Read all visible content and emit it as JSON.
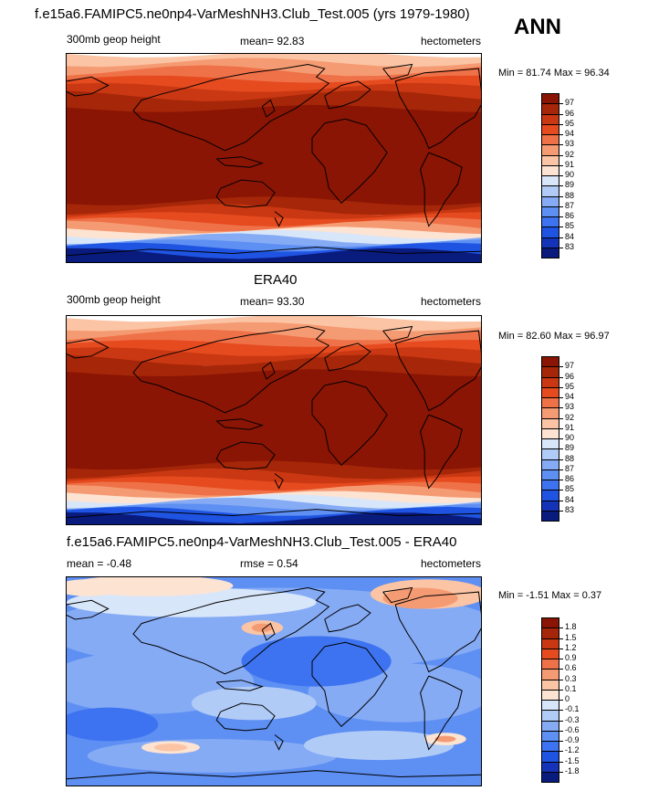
{
  "header": {
    "ann_label": "ANN"
  },
  "colors": {
    "abs_scale": [
      "#0a1b7e",
      "#1433b8",
      "#1f54e2",
      "#3d73f0",
      "#5e8ff2",
      "#86abf5",
      "#b1cbf7",
      "#d8e6fa",
      "#fde3d2",
      "#fbc4a4",
      "#f59b73",
      "#ef7148",
      "#e64a1f",
      "#c93812",
      "#a52608",
      "#8a1504"
    ],
    "diff_scale": [
      "#0a1b7e",
      "#1433b8",
      "#1f54e2",
      "#3d73f0",
      "#5e8ff2",
      "#86abf5",
      "#b1cbf7",
      "#d8e6fa",
      "#ffffff",
      "#fde3d2",
      "#fbc4a4",
      "#f59b73",
      "#ef7148",
      "#e64a1f",
      "#c93812",
      "#a52608",
      "#8a1504"
    ]
  },
  "chart_data": [
    {
      "type": "heatmap",
      "title": "f.e15a6.FAMIPC5.ne0np4-VarMeshNH3.Club_Test.005 (yrs 1979-1980)",
      "left_label": "300mb geop height",
      "center_label": "mean=  92.83",
      "right_label": "hectometers",
      "minmax_label": "Min =  81.74 Max =  96.34",
      "min": 81.74,
      "max": 96.34,
      "mean": 92.83,
      "colorbar_levels": [
        "97",
        "96",
        "95",
        "94",
        "93",
        "92",
        "91",
        "90",
        "89",
        "88",
        "87",
        "86",
        "85",
        "84",
        "83"
      ]
    },
    {
      "type": "heatmap",
      "title": "ERA40",
      "left_label": "300mb geop height",
      "center_label": "mean=  93.30",
      "right_label": "hectometers",
      "minmax_label": "Min =  82.60 Max =  96.97",
      "min": 82.6,
      "max": 96.97,
      "mean": 93.3,
      "colorbar_levels": [
        "97",
        "96",
        "95",
        "94",
        "93",
        "92",
        "91",
        "90",
        "89",
        "88",
        "87",
        "86",
        "85",
        "84",
        "83"
      ]
    },
    {
      "type": "heatmap",
      "title": "f.e15a6.FAMIPC5.ne0np4-VarMeshNH3.Club_Test.005 - ERA40",
      "left_label": "mean =  -0.48",
      "center_label": "rmse =   0.54",
      "right_label": "hectometers",
      "minmax_label": "Min =  -1.51 Max =   0.37",
      "min": -1.51,
      "max": 0.37,
      "mean": -0.48,
      "rmse": 0.54,
      "colorbar_levels": [
        "1.8",
        "1.5",
        "1.2",
        "0.9",
        "0.6",
        "0.3",
        "0.1",
        "0",
        "-0.1",
        "-0.3",
        "-0.6",
        "-0.9",
        "-1.2",
        "-1.5",
        "-1.8"
      ]
    }
  ]
}
